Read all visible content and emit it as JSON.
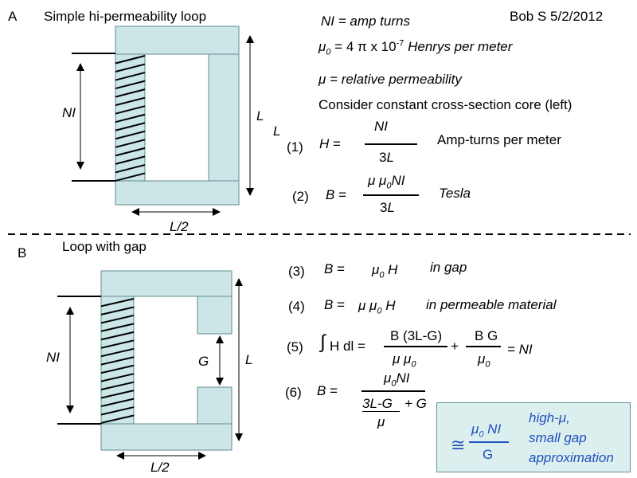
{
  "section_a": {
    "letter": "A",
    "title": "Simple hi-permeability loop",
    "label_ni": "NI",
    "label_l": "L",
    "label_l2": "L",
    "label_half_l": "L/2"
  },
  "section_b": {
    "letter": "B",
    "title": "Loop with gap",
    "label_ni": "NI",
    "label_l": "L",
    "label_g": "G",
    "label_half_l": "L/2"
  },
  "header": {
    "author_date": "Bob S 5/2/2012"
  },
  "definitions": {
    "ni_lhs": "NI",
    "ni_rhs": "= amp turns",
    "mu0_sym": "μ",
    "mu0_sub": "0",
    "mu0_eq": " = 4 π x 10",
    "mu0_exp": "-7",
    "mu0_unit": " Henrys per meter",
    "mu_def": "μ = relative permeability",
    "consider": "Consider constant cross-section core (left)"
  },
  "eq1": {
    "num": "(1)",
    "lhs": "H =",
    "numerator": "NI",
    "denominator_pre": "3",
    "denominator_var": "L",
    "unit": "Amp-turns per meter"
  },
  "eq2": {
    "num": "(2)",
    "lhs": "B =",
    "numerator_mu": "μ μ",
    "numerator_sub": "0",
    "numerator_rest": "NI",
    "denominator_pre": "3",
    "denominator_var": "L",
    "unit": "Tesla"
  },
  "eq3": {
    "num": "(3)",
    "lhs": "B =",
    "rhs_mu": "μ",
    "rhs_sub": "0",
    "rhs_rest": " H",
    "note": "in gap"
  },
  "eq4": {
    "num": "(4)",
    "lhs": "B =",
    "rhs_mu": "μ μ",
    "rhs_sub": "0",
    "rhs_rest": " H",
    "note": "in permeable material"
  },
  "eq5": {
    "num": "(5)",
    "integral": "∫",
    "lhs": "H dl =",
    "t1_num": "B (3L-G)",
    "t1_den_mu": "μ  μ",
    "t1_den_sub": "0",
    "plus": "+",
    "t2_num": "B G",
    "t2_den_mu": "μ",
    "t2_den_sub": "0",
    "rhs": "= NI"
  },
  "eq6": {
    "num": "(6)",
    "lhs": "B =",
    "num_mu": "μ",
    "num_sub": "0",
    "num_rest": "NI",
    "den_frac_num": "3L-G",
    "den_plus": "+ G",
    "den_frac_den": "μ"
  },
  "approx": {
    "symbol": "≅",
    "num_mu": "μ",
    "num_sub": "0",
    "num_rest": " NI",
    "den": "G",
    "note_line1": "high-μ,",
    "note_line2": "small gap",
    "note_line3": "approximation"
  },
  "colors": {
    "core_fill": "#cce6e8",
    "core_stroke": "#5f8a90",
    "approx_blue": "#1f4fbf",
    "approx_box_fill": "#dcefef"
  }
}
